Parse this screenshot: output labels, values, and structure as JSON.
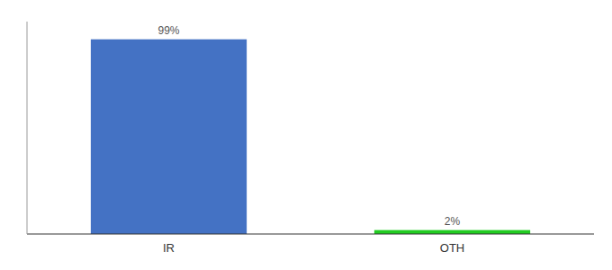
{
  "chart_data": {
    "type": "bar",
    "categories": [
      "IR",
      "OTH"
    ],
    "values": [
      99,
      2
    ],
    "value_labels": [
      "99%",
      "2%"
    ],
    "colors": [
      "#4472c4",
      "#22cc22"
    ],
    "ylim": [
      0,
      108
    ],
    "data_labels": true,
    "tick_labels": "x",
    "grid": false
  }
}
